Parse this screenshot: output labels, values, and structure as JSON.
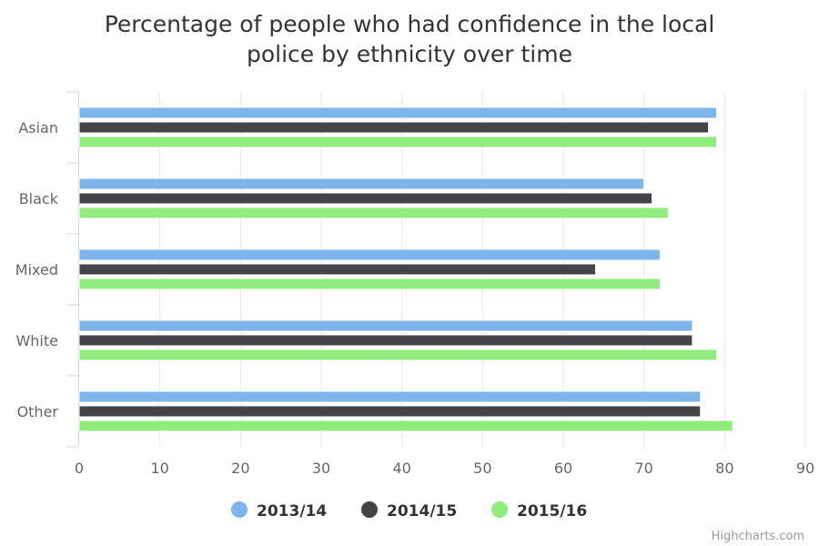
{
  "chart_data": {
    "type": "bar",
    "orientation": "horizontal",
    "title": "Percentage of people who had confidence in the local police by ethnicity over time",
    "title_lines": [
      "Percentage of people who had confidence in the local",
      "police by ethnicity over time"
    ],
    "categories": [
      "Asian",
      "Black",
      "Mixed",
      "White",
      "Other"
    ],
    "series": [
      {
        "name": "2013/14",
        "color": "#7cb5ec",
        "values": [
          79,
          70,
          72,
          76,
          77
        ]
      },
      {
        "name": "2014/15",
        "color": "#434348",
        "values": [
          78,
          71,
          64,
          76,
          77
        ]
      },
      {
        "name": "2015/16",
        "color": "#90ed7d",
        "values": [
          79,
          73,
          72,
          79,
          81
        ]
      }
    ],
    "xlim": [
      0,
      90
    ],
    "xticks": [
      "0",
      "10",
      "20",
      "30",
      "40",
      "50",
      "60",
      "70",
      "80",
      "90"
    ],
    "grid": true,
    "legend_position": "bottom-center",
    "credits": "Highcharts.com"
  }
}
